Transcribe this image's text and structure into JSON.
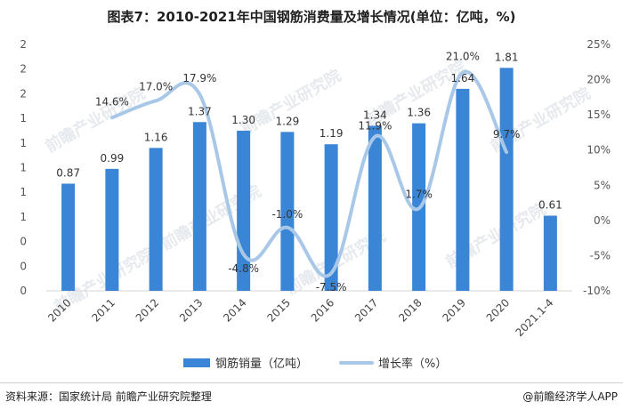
{
  "chart_data": {
    "type": "bar+line",
    "title": "图表7：2010-2021年中国钢筋消费量及增长情况(单位：亿吨，%)",
    "categories": [
      "2010",
      "2011",
      "2012",
      "2013",
      "2014",
      "2015",
      "2016",
      "2017",
      "2018",
      "2019",
      "2020",
      "2021.1-4"
    ],
    "series": [
      {
        "name": "钢筋销量（亿吨）",
        "type": "bar",
        "axis": "left",
        "color": "#3a85d6",
        "values": [
          0.87,
          0.99,
          1.16,
          1.37,
          1.3,
          1.29,
          1.19,
          1.34,
          1.36,
          1.64,
          1.81,
          0.61
        ],
        "labels": [
          "0.87",
          "0.99",
          "1.16",
          "1.37",
          "1.30",
          "1.29",
          "1.19",
          "1.34",
          "1.36",
          "1.64",
          "1.81",
          "0.61"
        ]
      },
      {
        "name": "增长率（%）",
        "type": "line",
        "axis": "right",
        "color": "#a9c8e8",
        "values": [
          null,
          14.6,
          17.0,
          17.9,
          -4.8,
          -1.0,
          -7.5,
          11.9,
          1.7,
          21.0,
          9.7,
          null
        ],
        "labels": [
          "",
          "14.6%",
          "17.0%",
          "17.9%",
          "-4.8%",
          "-1.0%",
          "-7.5%",
          "11.9%",
          "1.7%",
          "21.0%",
          "9.7%",
          ""
        ]
      }
    ],
    "left_axis": {
      "ylim": [
        0,
        2
      ],
      "tick_labels": [
        "0",
        "0",
        "0",
        "1",
        "1",
        "1",
        "1",
        "1",
        "2",
        "2",
        "2"
      ]
    },
    "right_axis": {
      "ylim": [
        -10,
        25
      ],
      "tick_labels": [
        "-10%",
        "-5%",
        "0%",
        "5%",
        "10%",
        "15%",
        "20%",
        "25%"
      ]
    },
    "legend": {
      "position": "bottom",
      "items": [
        "钢筋销量（亿吨）",
        "增长率（%）"
      ]
    }
  },
  "footer": {
    "source": "资料来源：国家统计局 前瞻产业研究院整理",
    "brand": "@前瞻经济学人APP"
  },
  "watermark": "前瞻产业研究院"
}
